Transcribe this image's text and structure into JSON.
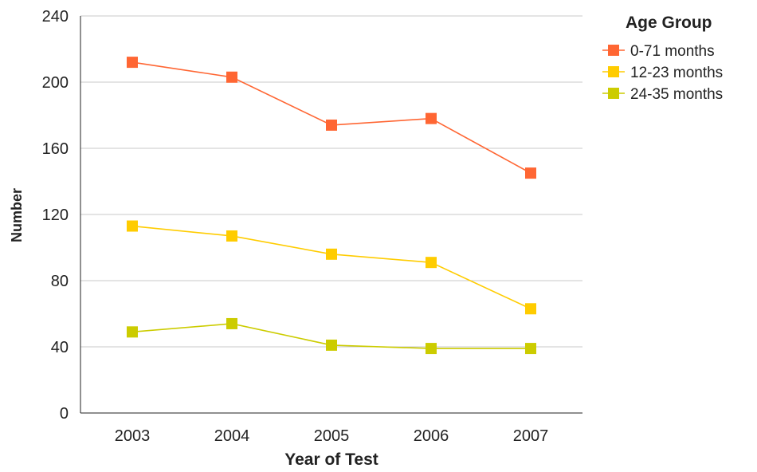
{
  "chart_data": {
    "type": "line",
    "xlabel": "Year of Test",
    "ylabel": "Number",
    "ylim": [
      0,
      240
    ],
    "yticks": [
      0,
      40,
      80,
      120,
      160,
      200,
      240
    ],
    "categories": [
      "2003",
      "2004",
      "2005",
      "2006",
      "2007"
    ],
    "grid": "horizontal",
    "legend": {
      "title": "Age Group",
      "position": "top-right"
    },
    "series": [
      {
        "name": " 0-71 months",
        "color": "#ff6633",
        "values": [
          212,
          203,
          174,
          178,
          145
        ]
      },
      {
        "name": "12-23 months",
        "color": "#ffcc00",
        "values": [
          113,
          107,
          96,
          91,
          63
        ]
      },
      {
        "name": "24-35 months",
        "color": "#cccc00",
        "values": [
          49,
          54,
          41,
          39,
          39
        ]
      }
    ]
  }
}
